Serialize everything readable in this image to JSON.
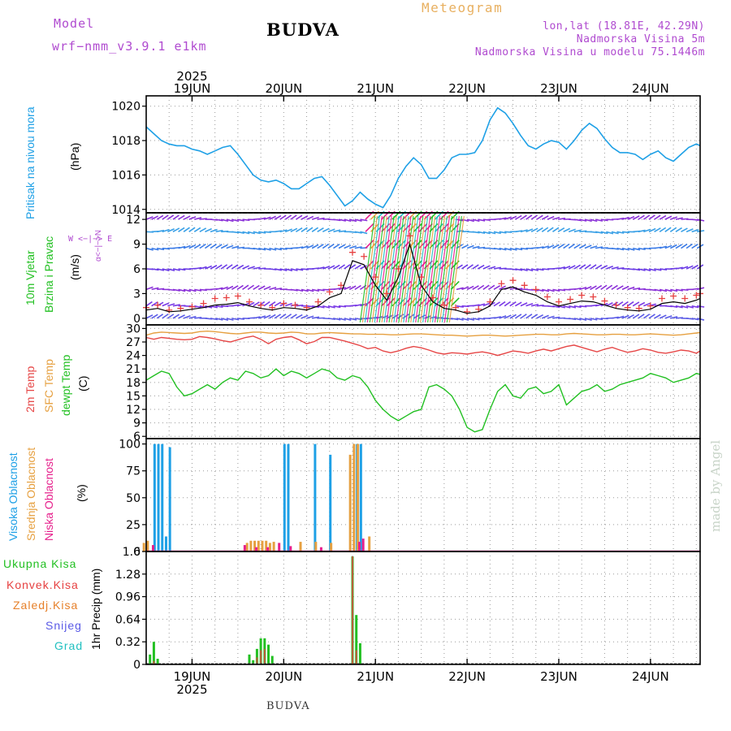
{
  "header": {
    "model_label": "Model",
    "model_name": "wrf−nmm_v3.9.1  e1km",
    "station_title": "BUDVA",
    "product_title": "Meteogram",
    "lonlat": "lon,lat (18.81E, 42.29N)",
    "elevation": "Nadmorska Visina 5m",
    "model_elevation": "Nadmorska Visina u modelu 75.1446m"
  },
  "footer": {
    "station": "BUDVA",
    "made_by": "made by Angel"
  },
  "time_axis": {
    "year": "2025",
    "day_labels": [
      "19JUN",
      "20JUN",
      "21JUN",
      "22JUN",
      "23JUN",
      "24JUN"
    ],
    "start_hour_offset_from_19jun": -12,
    "end_hour_offset_from_19jun": 133
  },
  "panel_labels": {
    "pressure": {
      "title": "Pritisak na nivou mora",
      "unit": "(hPa)"
    },
    "wind": {
      "title1": "10m Vjetar",
      "title2": "Brzina i Pravac",
      "unit": "(m/s)",
      "compass_ns": "α<−|−>N",
      "compass_we": "W <−|−> E"
    },
    "temp": {
      "t2m": "2m Temp",
      "sfc": "SFC Temp",
      "dew": "dewpt Temp",
      "unit": "(C)"
    },
    "cloud": {
      "high": "Visoka Oblacnost",
      "mid": "Srednja Oblacnost",
      "low": "Niska Oblacnost",
      "unit": "(%)"
    },
    "precip": {
      "title": "1hr Precip (mm)",
      "legend": [
        "Ukupna Kisa",
        "Konvek.Kisa",
        "Zaledj.Kisa",
        "Snijeg",
        "Grad"
      ]
    }
  },
  "colors": {
    "pressure": "#1ea0e6",
    "wind_speed": "#000000",
    "gust": "#e64040",
    "t2m": "#e64646",
    "sfc": "#e6a040",
    "dewpoint": "#22c022",
    "cloud_high": "#1ea0e6",
    "cloud_mid": "#e6a040",
    "cloud_low": "#e6208c",
    "precip_total": "#22c022",
    "precip_conv": "#e64040",
    "precip_frz": "#e6802a",
    "snow": "#5a5ae6",
    "hail": "#20c0c0",
    "pressure_title": "#1ea0e6",
    "wind_title1": "#22c022",
    "wind_title2": "#22c022",
    "temp_t2m": "#e64646",
    "temp_sfc": "#e6a040",
    "temp_dew": "#22c022",
    "compass": "#b04bd0"
  },
  "chart_data": [
    {
      "type": "line",
      "name": "pressure",
      "ylabel": "(hPa)",
      "ylim": [
        1013.8,
        1020.6
      ],
      "yticks": [
        1014,
        1016,
        1018,
        1020
      ],
      "grid": true,
      "x_hours": [
        -12,
        -10,
        -8,
        -6,
        -4,
        -2,
        0,
        2,
        4,
        6,
        8,
        10,
        12,
        14,
        16,
        18,
        20,
        22,
        24,
        26,
        28,
        30,
        32,
        34,
        36,
        38,
        40,
        42,
        44,
        46,
        48,
        50,
        52,
        54,
        56,
        58,
        60,
        62,
        64,
        66,
        68,
        70,
        72,
        74,
        76,
        78,
        80,
        82,
        84,
        86,
        88,
        90,
        92,
        94,
        96,
        98,
        100,
        102,
        104,
        106,
        108,
        110,
        112,
        114,
        116,
        118,
        120,
        122,
        124,
        126,
        128,
        130,
        132,
        133
      ],
      "values": [
        1018.8,
        1018.4,
        1018.0,
        1017.8,
        1017.7,
        1017.7,
        1017.5,
        1017.4,
        1017.2,
        1017.4,
        1017.6,
        1017.7,
        1017.2,
        1016.6,
        1016.0,
        1015.7,
        1015.6,
        1015.7,
        1015.5,
        1015.2,
        1015.2,
        1015.5,
        1015.8,
        1015.9,
        1015.4,
        1014.8,
        1014.2,
        1014.5,
        1015.0,
        1014.6,
        1014.3,
        1014.1,
        1014.8,
        1015.8,
        1016.5,
        1017.0,
        1016.6,
        1015.8,
        1015.8,
        1016.3,
        1017.0,
        1017.2,
        1017.2,
        1017.3,
        1018.0,
        1019.2,
        1019.9,
        1019.6,
        1019.0,
        1018.3,
        1017.7,
        1017.5,
        1017.8,
        1018.0,
        1017.9,
        1017.5,
        1018.0,
        1018.6,
        1019.0,
        1018.7,
        1018.1,
        1017.6,
        1017.3,
        1017.3,
        1017.2,
        1016.9,
        1017.2,
        1017.4,
        1017.0,
        1016.8,
        1017.2,
        1017.6,
        1017.8,
        1017.7
      ],
      "series_name": ""
    },
    {
      "type": "line",
      "name": "wind",
      "ylabel": "(m/s)",
      "ylim": [
        -0.8,
        12.8
      ],
      "yticks": [
        0,
        3,
        6,
        9,
        12
      ],
      "grid": true,
      "x_hours": [
        -12,
        -9,
        -6,
        -3,
        0,
        3,
        6,
        9,
        12,
        15,
        18,
        21,
        24,
        27,
        30,
        33,
        36,
        39,
        42,
        45,
        48,
        51,
        54,
        57,
        60,
        63,
        66,
        69,
        72,
        75,
        78,
        81,
        84,
        87,
        90,
        93,
        96,
        99,
        102,
        105,
        108,
        111,
        114,
        117,
        120,
        123,
        126,
        129,
        132,
        133
      ],
      "speed": [
        1.0,
        1.2,
        0.8,
        0.9,
        1.1,
        1.3,
        1.6,
        1.7,
        1.9,
        1.5,
        1.2,
        1.0,
        1.3,
        1.2,
        1.0,
        1.5,
        2.5,
        3.0,
        7.0,
        6.5,
        4.0,
        2.2,
        5.0,
        9.0,
        4.0,
        2.0,
        1.2,
        1.0,
        0.6,
        0.8,
        1.5,
        3.5,
        3.8,
        3.2,
        2.8,
        2.0,
        1.5,
        1.8,
        2.1,
        2.0,
        1.6,
        1.2,
        1.0,
        0.9,
        1.1,
        1.8,
        2.0,
        1.8,
        2.2,
        2.4
      ],
      "gust": [
        1.3,
        1.6,
        1.0,
        1.2,
        1.4,
        1.8,
        2.4,
        2.5,
        2.7,
        2.0,
        1.6,
        1.3,
        1.8,
        1.6,
        1.3,
        2.0,
        3.2,
        4.0,
        8.0,
        7.5,
        5.0,
        3.0,
        6.0,
        10.0,
        5.0,
        2.5,
        1.6,
        1.3,
        0.8,
        1.1,
        2.0,
        4.2,
        4.6,
        4.0,
        3.5,
        2.6,
        2.0,
        2.3,
        2.8,
        2.6,
        2.1,
        1.6,
        1.3,
        1.2,
        1.5,
        2.4,
        2.7,
        2.4,
        2.8,
        3.0
      ],
      "barb_levels": [
        0,
        1.5,
        3.5,
        6,
        8.5,
        10.5,
        12
      ],
      "barb_colors": [
        "#5a5ae6",
        "#7a3ae6",
        "#8a30d8",
        "#6a3ae6",
        "#3a7ae6",
        "#3aa0e6",
        "#8a30d8"
      ],
      "storm_period_hours": [
        44,
        68
      ]
    },
    {
      "type": "line",
      "name": "temperature",
      "ylabel": "(C)",
      "ylim": [
        5.5,
        30.8
      ],
      "yticks": [
        6,
        9,
        12,
        15,
        18,
        21,
        24,
        27,
        30
      ],
      "grid": true,
      "x_hours": [
        -12,
        -10,
        -8,
        -6,
        -4,
        -2,
        0,
        2,
        4,
        6,
        8,
        10,
        12,
        14,
        16,
        18,
        20,
        22,
        24,
        26,
        28,
        30,
        32,
        34,
        36,
        38,
        40,
        42,
        44,
        46,
        48,
        50,
        52,
        54,
        56,
        58,
        60,
        62,
        64,
        66,
        68,
        70,
        72,
        74,
        76,
        78,
        80,
        82,
        84,
        86,
        88,
        90,
        92,
        94,
        96,
        98,
        100,
        102,
        104,
        106,
        108,
        110,
        112,
        114,
        116,
        118,
        120,
        122,
        124,
        126,
        128,
        130,
        132,
        133
      ],
      "series": [
        {
          "name": "2m Temp",
          "values": [
            28.0,
            27.6,
            28.0,
            27.8,
            27.6,
            27.5,
            27.6,
            28.2,
            28.0,
            27.7,
            27.3,
            27.0,
            27.5,
            28.0,
            28.3,
            27.6,
            26.6,
            27.6,
            28.0,
            28.2,
            27.5,
            26.6,
            27.1,
            28.0,
            28.0,
            27.6,
            27.2,
            26.7,
            26.2,
            25.5,
            25.8,
            25.0,
            24.6,
            25.0,
            25.6,
            26.0,
            25.7,
            25.2,
            24.6,
            24.3,
            24.6,
            24.5,
            24.3,
            24.6,
            24.8,
            24.5,
            24.0,
            24.5,
            25.0,
            24.8,
            24.5,
            25.0,
            25.4,
            25.0,
            25.5,
            26.0,
            26.3,
            25.8,
            25.3,
            24.8,
            25.4,
            25.8,
            25.2,
            24.7,
            25.0,
            25.5,
            25.2,
            24.7,
            24.5,
            24.8,
            25.2,
            25.0,
            24.5,
            25.0
          ]
        },
        {
          "name": "SFC Temp",
          "values": [
            28.5,
            29.0,
            29.2,
            29.1,
            29.0,
            28.9,
            29.0,
            29.3,
            29.4,
            29.3,
            29.1,
            28.9,
            28.8,
            29.0,
            29.2,
            29.2,
            29.0,
            28.9,
            29.0,
            29.2,
            29.1,
            28.8,
            28.8,
            29.0,
            29.1,
            29.0,
            28.9,
            28.8,
            28.8,
            28.7,
            28.7,
            28.7,
            28.6,
            28.6,
            28.7,
            28.8,
            28.8,
            28.7,
            28.6,
            28.5,
            28.5,
            28.4,
            28.3,
            28.4,
            28.5,
            28.5,
            28.4,
            28.3,
            28.4,
            28.5,
            28.6,
            28.7,
            28.7,
            28.6,
            28.6,
            28.8,
            28.9,
            28.8,
            28.7,
            28.6,
            28.6,
            28.7,
            28.7,
            28.6,
            28.6,
            28.7,
            28.8,
            28.7,
            28.6,
            28.5,
            28.6,
            28.8,
            29.0,
            29.1
          ]
        },
        {
          "name": "dewpt Temp",
          "values": [
            18.5,
            19.5,
            20.5,
            20.0,
            17.0,
            15.0,
            15.5,
            16.5,
            17.5,
            16.5,
            18.0,
            19.0,
            18.5,
            20.5,
            20.0,
            19.0,
            19.5,
            21.0,
            19.5,
            20.5,
            20.0,
            19.0,
            20.0,
            21.0,
            20.5,
            19.0,
            18.5,
            19.5,
            19.0,
            17.0,
            14.0,
            12.0,
            10.5,
            9.5,
            10.5,
            11.5,
            12.0,
            17.0,
            17.5,
            16.5,
            15.0,
            12.0,
            8.0,
            7.0,
            7.5,
            12.0,
            16.0,
            17.5,
            15.0,
            14.5,
            16.5,
            17.0,
            15.5,
            16.0,
            17.5,
            13.0,
            14.5,
            16.0,
            16.5,
            17.5,
            16.0,
            16.5,
            17.5,
            18.0,
            18.5,
            19.0,
            20.0,
            19.5,
            19.0,
            18.0,
            18.5,
            19.0,
            20.0,
            19.8
          ]
        }
      ]
    },
    {
      "type": "bar",
      "name": "cloud",
      "ylabel": "(%)",
      "ylim": [
        0,
        105
      ],
      "yticks": [
        0,
        25,
        50,
        75,
        100
      ],
      "grid": true,
      "series": [
        {
          "name": "Visoka Oblacnost",
          "points": [
            [
              -11,
              0
            ],
            [
              -10,
              100
            ],
            [
              -9,
              100
            ],
            [
              -8,
              100
            ],
            [
              -7,
              14
            ],
            [
              -6,
              97
            ],
            [
              24,
              100
            ],
            [
              25,
              100
            ],
            [
              32,
              100
            ],
            [
              36,
              90
            ],
            [
              43,
              100
            ],
            [
              44,
              100
            ]
          ]
        },
        {
          "name": "Srednja Oblacnost",
          "points": [
            [
              -12,
              8
            ],
            [
              -11,
              10
            ],
            [
              15,
              8
            ],
            [
              16,
              10
            ],
            [
              17,
              10
            ],
            [
              18,
              10
            ],
            [
              19,
              10
            ],
            [
              20,
              10
            ],
            [
              21,
              8
            ],
            [
              22,
              9
            ],
            [
              29,
              9
            ],
            [
              33,
              9
            ],
            [
              37,
              8
            ],
            [
              42,
              90
            ],
            [
              43,
              100
            ],
            [
              44,
              100
            ],
            [
              47,
              14
            ]
          ]
        },
        {
          "name": "Niska Oblacnost",
          "points": [
            [
              -10,
              6
            ],
            [
              14,
              6
            ],
            [
              17,
              4
            ],
            [
              20,
              4
            ],
            [
              23,
              8
            ],
            [
              26,
              5
            ],
            [
              34,
              4
            ],
            [
              44,
              9
            ],
            [
              45,
              12
            ]
          ]
        }
      ]
    },
    {
      "type": "bar",
      "name": "precipitation",
      "ylabel": "1hr Precip (mm)",
      "ylim": [
        0,
        1.6
      ],
      "yticks": [
        0,
        0.32,
        0.64,
        0.96,
        1.28,
        1.6
      ],
      "grid": true,
      "series": [
        {
          "name": "Ukupna Kisa",
          "points": [
            [
              -11,
              0.14
            ],
            [
              -10,
              0.32
            ],
            [
              -9,
              0.08
            ],
            [
              15,
              0.14
            ],
            [
              16,
              0.06
            ],
            [
              17,
              0.22
            ],
            [
              18,
              0.37
            ],
            [
              19,
              0.37
            ],
            [
              20,
              0.28
            ],
            [
              21,
              0.12
            ],
            [
              42,
              1.53
            ],
            [
              43,
              0.7
            ],
            [
              44,
              0.3
            ]
          ]
        },
        {
          "name": "Konvek.Kisa",
          "points": [
            [
              -10,
              0.05
            ],
            [
              17,
              0.1
            ],
            [
              18,
              0.2
            ],
            [
              19,
              0.22
            ],
            [
              42,
              1.53
            ],
            [
              43,
              0.2
            ]
          ]
        }
      ]
    }
  ]
}
